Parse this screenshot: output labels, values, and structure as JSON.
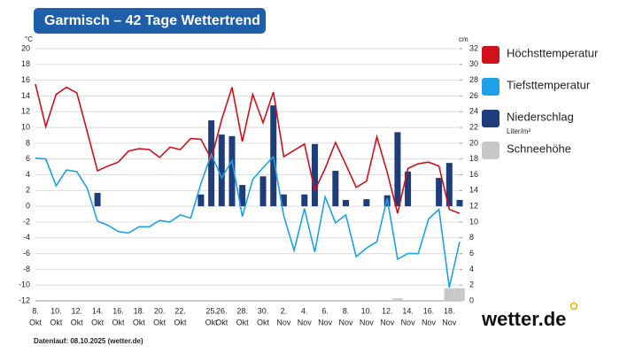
{
  "chart_data": {
    "type": "line",
    "title": "Garmisch – 42 Tage Wettertrend",
    "y_unit": "°C",
    "y2_unit": "cm",
    "footer": "Datenlauf: 08.10.2025 (wetter.de)",
    "logo": "wetter.de",
    "categories": [
      "8.",
      null,
      "10.",
      null,
      "12.",
      null,
      "14.",
      null,
      "16.",
      null,
      "18.",
      null,
      "20.",
      null,
      "22.",
      null,
      null,
      "25.",
      "26.",
      null,
      "28.",
      null,
      "30.",
      null,
      "2.",
      null,
      "4.",
      null,
      "6.",
      null,
      "8.",
      null,
      "10.",
      null,
      "12.",
      null,
      "14.",
      null,
      "16.",
      null,
      "18.",
      null
    ],
    "months": [
      "Okt",
      null,
      "Okt",
      null,
      "Okt",
      null,
      "Okt",
      null,
      "Okt",
      null,
      "Okt",
      null,
      "Okt",
      null,
      "Okt",
      null,
      null,
      "Okt",
      "Okt",
      null,
      "Okt",
      null,
      "Okt",
      null,
      "Nov",
      null,
      "Nov",
      null,
      "Nov",
      null,
      "Nov",
      null,
      "Nov",
      null,
      "Nov",
      null,
      "Nov",
      null,
      "Nov",
      null,
      "Nov",
      null
    ],
    "ylim": [
      -12,
      20
    ],
    "yticks": [
      -12,
      -10,
      -8,
      -6,
      -4,
      -2,
      0,
      2,
      4,
      6,
      8,
      10,
      12,
      14,
      16,
      18,
      20
    ],
    "y2lim": [
      0,
      32
    ],
    "y2ticks": [
      0,
      2,
      4,
      6,
      8,
      10,
      12,
      14,
      16,
      18,
      20,
      22,
      24,
      26,
      28,
      30,
      32
    ],
    "grid": true,
    "series": [
      {
        "name": "Höchsttemperatur",
        "color": "#d0101a",
        "kind": "line",
        "values": [
          15.5,
          10.1,
          14.2,
          15.1,
          14.4,
          9.5,
          4.5,
          5.1,
          5.6,
          7.0,
          7.3,
          7.2,
          6.2,
          7.5,
          7.2,
          8.6,
          8.5,
          6.0,
          11,
          15.1,
          8.2,
          14.2,
          10.6,
          14.5,
          6.3,
          7.1,
          7.9,
          2.0,
          4.8,
          8.1,
          5.3,
          2.4,
          3.2,
          8.8,
          4.3,
          -0.9,
          4.8,
          5.4,
          5.6,
          5.1,
          -0.4,
          -0.9
        ]
      },
      {
        "name": "Tiefsttemperatur",
        "color": "#1fa0e8",
        "kind": "line",
        "values": [
          6.1,
          6.0,
          2.6,
          4.6,
          4.4,
          2.3,
          -1.9,
          -2.4,
          -3.2,
          -3.4,
          -2.6,
          -2.6,
          -1.8,
          -2.0,
          -1.1,
          -1.5,
          2.9,
          6.6,
          3.6,
          5.8,
          -1.3,
          3.4,
          4.9,
          6.3,
          -1.2,
          -5.6,
          -0.3,
          -5.8,
          1.2,
          -2.1,
          -1.1,
          -6.4,
          -5.3,
          -4.5,
          1.0,
          -6.7,
          -6.0,
          -6.0,
          -1.6,
          -0.4,
          -10.3,
          -4.5
        ]
      },
      {
        "name": "Niederschlag",
        "unit": "Liter/m²",
        "color": "#1f3d7a",
        "kind": "bar",
        "axis": "y2",
        "values": [
          null,
          null,
          null,
          null,
          null,
          null,
          13.7,
          null,
          null,
          null,
          null,
          null,
          null,
          null,
          null,
          null,
          13.5,
          22.9,
          21.1,
          20.9,
          14.7,
          null,
          15.8,
          24.8,
          13.5,
          null,
          13.5,
          19.9,
          null,
          16.5,
          12.8,
          null,
          12.9,
          null,
          13.4,
          21.4,
          16.4,
          null,
          null,
          15.6,
          17.5,
          12.8
        ]
      },
      {
        "name": "Schneehöhe",
        "color": "#c8c8c8",
        "kind": "snow",
        "axis": "y2",
        "values": [
          0,
          0,
          0,
          0,
          0,
          0,
          0,
          0,
          0,
          0,
          0,
          0,
          0,
          0,
          0,
          0,
          0,
          0,
          0,
          0,
          0,
          0,
          0,
          0,
          0,
          0,
          0,
          0,
          0,
          0,
          0,
          0,
          0,
          0,
          0,
          0.3,
          0,
          0,
          0,
          0,
          1.6,
          1.6
        ]
      }
    ]
  }
}
